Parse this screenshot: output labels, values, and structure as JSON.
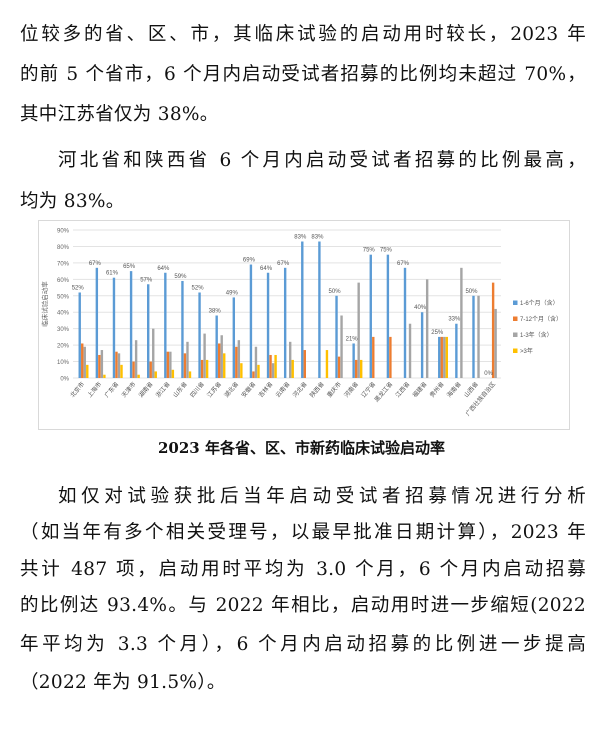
{
  "paragraph1": [
    "位较多的省、区、市，其临床试验的启动用时较长，2023 年",
    "的前 5 个省市，6 个月内启动受试者招募的比例均未超过 70%，",
    "其中江苏省仅为 38%。"
  ],
  "paragraph2": [
    "河北省和陕西省 6 个月内启动受试者招募的比例最高，",
    "均为 83%。"
  ],
  "caption": "2023 年各省、区、市新药临床试验启动率",
  "paragraph3": [
    "如仅对试验获批后当年启动受试者招募情况进行分析",
    "（如当年有多个相关受理号，以最早批准日期计算），2023 年",
    "共计 487 项，启动用时平均为 3.0 个月，6 个月内启动招募",
    "的比例达 93.4%。与 2022 年相比，启动用时进一步缩短(2022",
    "年平均为 3.3 个月），6 个月内启动招募的比例进一步提高",
    "（2022 年为 91.5%）。"
  ],
  "chart_data": {
    "type": "bar",
    "title": "",
    "ylabel": "临床试验启动率",
    "ylim": [
      0,
      90
    ],
    "yticks": [
      "0%",
      "10%",
      "20%",
      "30%",
      "40%",
      "50%",
      "60%",
      "70%",
      "80%",
      "90%"
    ],
    "grid": true,
    "legend_position": "right",
    "categories": [
      "北京市",
      "上海市",
      "广东省",
      "天津市",
      "湖南省",
      "浙江省",
      "山东省",
      "四川省",
      "江苏省",
      "湖北省",
      "安徽省",
      "吉林省",
      "云南省",
      "河北省",
      "陕西省",
      "重庆市",
      "河南省",
      "辽宁省",
      "黑龙江省",
      "江西省",
      "福建省",
      "贵州省",
      "海南省",
      "山西省",
      "广西壮族自治区"
    ],
    "series": [
      {
        "name": "1-6个月（含）",
        "color": "#5b9bd5",
        "values": [
          52,
          67,
          61,
          65,
          57,
          64,
          59,
          52,
          38,
          49,
          69,
          64,
          67,
          83,
          83,
          50,
          21,
          75,
          75,
          67,
          40,
          25,
          33,
          50,
          0
        ]
      },
      {
        "name": "7-12个月（含）",
        "color": "#ed7d31",
        "values": [
          21,
          14,
          16,
          10,
          10,
          16,
          15,
          11,
          21,
          19,
          4,
          14,
          0,
          17,
          0,
          13,
          11,
          25,
          25,
          0,
          0,
          25,
          0,
          0,
          58
        ]
      },
      {
        "name": "1-3年（含）",
        "color": "#a5a5a5",
        "values": [
          19,
          17,
          15,
          23,
          30,
          16,
          22,
          27,
          26,
          23,
          19,
          9,
          22,
          0,
          0,
          38,
          58,
          0,
          0,
          33,
          60,
          25,
          67,
          50,
          42
        ]
      },
      {
        "name": ">3年",
        "color": "#ffc000",
        "values": [
          8,
          2,
          8,
          2,
          4,
          5,
          4,
          11,
          15,
          9,
          8,
          14,
          11,
          0,
          17,
          0,
          11,
          0,
          0,
          0,
          0,
          25,
          0,
          0,
          0
        ]
      }
    ],
    "data_labels": [
      "52%",
      "67%",
      "61%",
      "65%",
      "57%",
      "64%",
      "59%",
      "52%",
      "38%",
      "49%",
      "69%",
      "64%",
      "67%",
      "83%",
      "83%",
      "50%",
      "21%",
      "75%",
      "75%",
      "67%",
      "40%",
      "25%",
      "33%",
      "50%",
      "0%"
    ]
  }
}
